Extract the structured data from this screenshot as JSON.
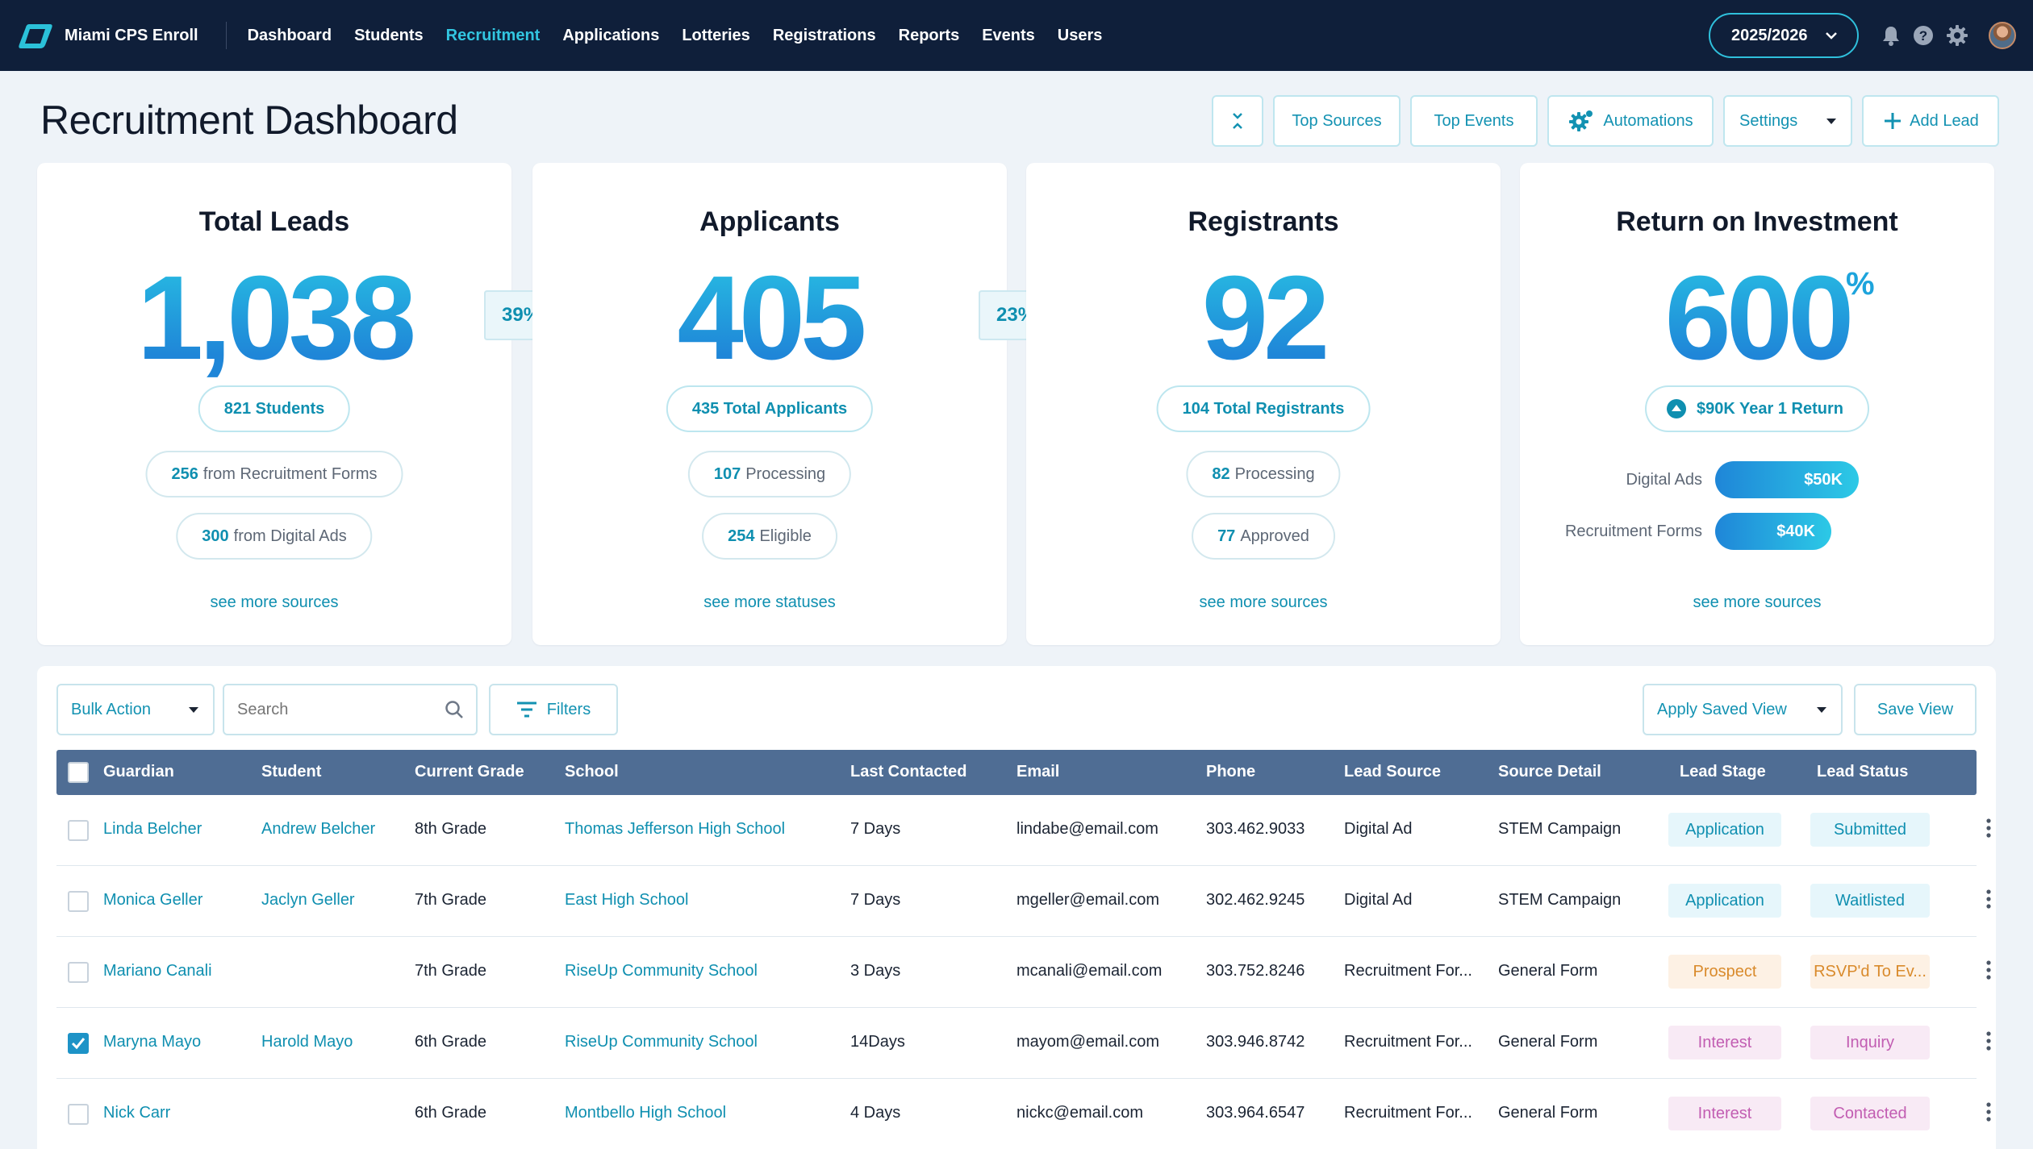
{
  "app": {
    "name": "Miami CPS Enroll",
    "nav": [
      "Dashboard",
      "Students",
      "Recruitment",
      "Applications",
      "Lotteries",
      "Registrations",
      "Reports",
      "Events",
      "Users"
    ],
    "active_nav": "Recruitment",
    "year": "2025/2026"
  },
  "header": {
    "title": "Recruitment Dashboard",
    "buttons": {
      "top_sources": "Top Sources",
      "top_events": "Top Events",
      "automations": "Automations",
      "settings": "Settings",
      "add_lead": "Add Lead"
    }
  },
  "cards": {
    "leads": {
      "title": "Total Leads",
      "value": "1,038",
      "primary": "821 Students",
      "sub1_num": "256",
      "sub1_text": "from Recruitment Forms",
      "sub2_num": "300",
      "sub2_text": "from Digital Ads",
      "more": "see more sources"
    },
    "conv1": "39%",
    "applicants": {
      "title": "Applicants",
      "value": "405",
      "primary": "435 Total Applicants",
      "sub1_num": "107",
      "sub1_text": "Processing",
      "sub2_num": "254",
      "sub2_text": "Eligible",
      "more": "see more statuses"
    },
    "conv2": "23%",
    "registrants": {
      "title": "Registrants",
      "value": "92",
      "primary": "104 Total Registrants",
      "sub1_num": "82",
      "sub1_text": "Processing",
      "sub2_num": "77",
      "sub2_text": "Approved",
      "more": "see more sources"
    },
    "roi": {
      "title": "Return on Investment",
      "value": "600",
      "unit": "%",
      "primary": "$90K Year 1 Return",
      "bars": [
        {
          "label": "Digital Ads",
          "value_label": "$50K",
          "fraction": 0.57
        },
        {
          "label": "Recruitment Forms",
          "value_label": "$40K",
          "fraction": 0.46
        }
      ],
      "more": "see more sources"
    }
  },
  "table": {
    "bulk_action": "Bulk Action",
    "search_placeholder": "Search",
    "filters": "Filters",
    "apply_saved_view": "Apply Saved View",
    "save_view": "Save View",
    "columns": [
      "Guardian",
      "Student",
      "Current Grade",
      "School",
      "Last Contacted",
      "Email",
      "Phone",
      "Lead Source",
      "Source Detail",
      "Lead Stage",
      "Lead Status"
    ],
    "rows": [
      {
        "guardian": "Linda Belcher",
        "student": "Andrew Belcher",
        "grade": "8th Grade",
        "school": "Thomas Jefferson High School",
        "last": "7 Days",
        "email": "lindabe@email.com",
        "phone": "303.462.9033",
        "source": "Digital Ad",
        "detail": "STEM Campaign",
        "stage": "Application",
        "status": "Submitted",
        "checked": false
      },
      {
        "guardian": "Monica Geller",
        "student": "Jaclyn Geller",
        "grade": "7th Grade",
        "school": "East High School",
        "last": "7 Days",
        "email": "mgeller@email.com",
        "phone": "302.462.9245",
        "source": "Digital Ad",
        "detail": "STEM Campaign",
        "stage": "Application",
        "status": "Waitlisted",
        "checked": false
      },
      {
        "guardian": "Mariano Canali",
        "student": "",
        "grade": "7th Grade",
        "school": "RiseUp Community School",
        "last": "3 Days",
        "email": "mcanali@email.com",
        "phone": "303.752.8246",
        "source": "Recruitment For...",
        "detail": "General Form",
        "stage": "Prospect",
        "status": "RSVP'd To Ev...",
        "checked": false
      },
      {
        "guardian": "Maryna Mayo",
        "student": "Harold Mayo",
        "grade": "6th Grade",
        "school": "RiseUp Community School",
        "last": "14Days",
        "email": "mayom@email.com",
        "phone": "303.946.8742",
        "source": "Recruitment For...",
        "detail": "General Form",
        "stage": "Interest",
        "status": "Inquiry",
        "checked": true
      },
      {
        "guardian": "Nick Carr",
        "student": "",
        "grade": "6th Grade",
        "school": "Montbello High School",
        "last": "4 Days",
        "email": "nickc@email.com",
        "phone": "303.964.6547",
        "source": "Recruitment For...",
        "detail": "General Form",
        "stage": "Interest",
        "status": "Contacted",
        "checked": false
      }
    ]
  },
  "colors": {
    "nav_bg": "#0f1f3a",
    "accent": "#0f8fb0",
    "table_header": "#4f6d94",
    "tag_application": "#e6f6fb",
    "tag_prospect": "#fdf1e4",
    "tag_interest": "#f8eaf5"
  }
}
